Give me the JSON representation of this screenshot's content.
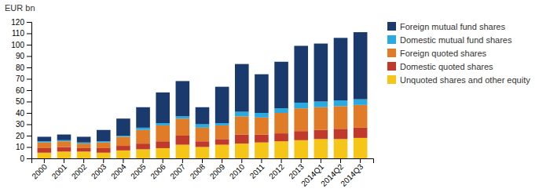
{
  "chart_data": {
    "type": "bar",
    "stacked": true,
    "y_label": "EUR bn",
    "categories": [
      "2000",
      "2001",
      "2002",
      "2003",
      "2004",
      "2005",
      "2006",
      "2007",
      "2008",
      "2009",
      "2010",
      "2011",
      "2012",
      "2013",
      "2014Q1",
      "2014Q2",
      "2014Q3"
    ],
    "series": [
      {
        "name": "Unquoted shares and other equity",
        "color": "#f5c518",
        "values": [
          5,
          6,
          6,
          5,
          7,
          8,
          9,
          12,
          10,
          12,
          13,
          14,
          15,
          16,
          17,
          17,
          18
        ]
      },
      {
        "name": "Domestic quoted shares",
        "color": "#c0392b",
        "values": [
          4,
          4,
          3,
          4,
          4,
          5,
          6,
          8,
          5,
          5,
          8,
          7,
          7,
          8,
          8,
          9,
          9
        ]
      },
      {
        "name": "Foreign quoted shares",
        "color": "#e07b28",
        "values": [
          5,
          5,
          4,
          5,
          8,
          12,
          14,
          15,
          12,
          12,
          16,
          15,
          18,
          20,
          20,
          20,
          20
        ]
      },
      {
        "name": "Domestic mutual fund shares",
        "color": "#29abe2",
        "values": [
          1,
          1,
          1,
          1,
          1,
          2,
          2,
          2,
          3,
          2,
          4,
          4,
          4,
          5,
          5,
          5,
          5
        ]
      },
      {
        "name": "Foreign mutual fund shares",
        "color": "#1a3a6e",
        "values": [
          4,
          5,
          5,
          10,
          15,
          18,
          27,
          31,
          15,
          32,
          42,
          34,
          41,
          50,
          51,
          55,
          59
        ]
      }
    ],
    "ylim": [
      0,
      120
    ],
    "yticks": [
      0,
      10,
      20,
      30,
      40,
      50,
      60,
      70,
      80,
      90,
      100,
      110,
      120
    ],
    "grid": false,
    "legend": "right"
  }
}
